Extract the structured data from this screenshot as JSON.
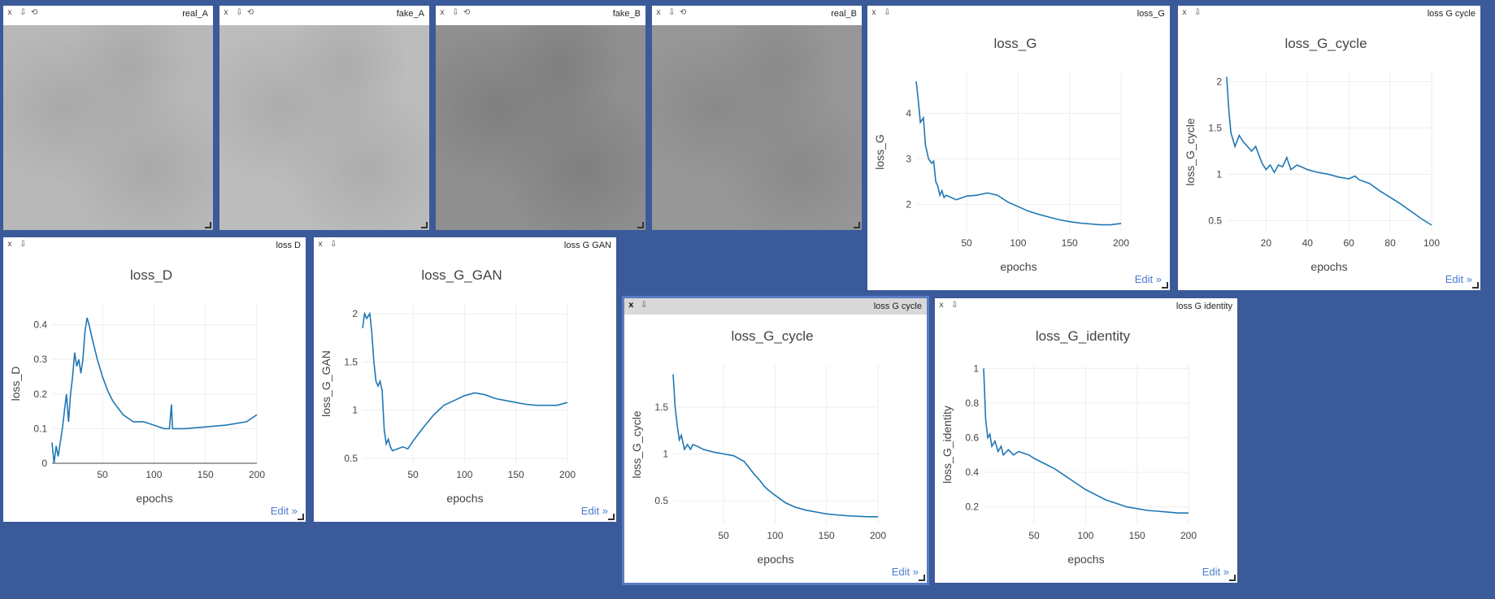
{
  "images": [
    {
      "id": "real_A",
      "title": "real_A",
      "tone": "#b8b8b8",
      "grain": "#a9a9a9"
    },
    {
      "id": "fake_A",
      "title": "fake_A",
      "tone": "#bcbcbc",
      "grain": "#acacac"
    },
    {
      "id": "fake_B",
      "title": "fake_B",
      "tone": "#8f8f8f",
      "grain": "#7f7f7f"
    },
    {
      "id": "real_B",
      "title": "real_B",
      "tone": "#979797",
      "grain": "#8a8a8a"
    }
  ],
  "plots": [
    {
      "id": "loss_G",
      "window_title": "loss_G",
      "title": "loss_G",
      "xlabel": "epochs",
      "ylabel": "loss_G",
      "edit_label": "Edit »",
      "chart_data": {
        "type": "line",
        "xlim": [
          1,
          200
        ],
        "ylim": [
          1.4,
          4.9
        ],
        "xticks": [
          50,
          100,
          150,
          200
        ],
        "yticks": [
          2,
          3,
          4
        ],
        "x": [
          1,
          3,
          5,
          8,
          10,
          13,
          16,
          18,
          20,
          22,
          24,
          26,
          28,
          30,
          35,
          40,
          50,
          60,
          70,
          80,
          90,
          100,
          110,
          120,
          130,
          140,
          150,
          160,
          170,
          180,
          190,
          200
        ],
        "y": [
          4.7,
          4.3,
          3.8,
          3.9,
          3.3,
          3.0,
          2.9,
          2.95,
          2.5,
          2.4,
          2.2,
          2.3,
          2.15,
          2.2,
          2.15,
          2.1,
          2.18,
          2.2,
          2.25,
          2.2,
          2.05,
          1.95,
          1.85,
          1.78,
          1.72,
          1.66,
          1.62,
          1.59,
          1.57,
          1.55,
          1.55,
          1.58
        ]
      }
    },
    {
      "id": "loss_G_cycle_top",
      "window_title": "loss G cycle",
      "title": "loss_G_cycle",
      "xlabel": "epochs",
      "ylabel": "loss_G_cycle",
      "edit_label": "Edit »",
      "chart_data": {
        "type": "line",
        "xlim": [
          1,
          100
        ],
        "ylim": [
          0.38,
          2.1
        ],
        "xticks": [
          20,
          40,
          60,
          80,
          100
        ],
        "yticks": [
          0.5,
          1,
          1.5,
          2
        ],
        "x": [
          1,
          2,
          3,
          5,
          7,
          9,
          11,
          13,
          15,
          18,
          20,
          22,
          24,
          26,
          28,
          30,
          32,
          35,
          38,
          40,
          45,
          50,
          55,
          60,
          63,
          65,
          70,
          75,
          80,
          85,
          90,
          95,
          100
        ],
        "y": [
          2.05,
          1.7,
          1.45,
          1.3,
          1.42,
          1.35,
          1.3,
          1.25,
          1.3,
          1.12,
          1.05,
          1.1,
          1.02,
          1.1,
          1.08,
          1.18,
          1.05,
          1.1,
          1.07,
          1.05,
          1.02,
          1.0,
          0.97,
          0.95,
          0.98,
          0.94,
          0.9,
          0.82,
          0.75,
          0.68,
          0.6,
          0.52,
          0.45
        ]
      }
    },
    {
      "id": "loss_D",
      "window_title": "loss D",
      "title": "loss_D",
      "xlabel": "epochs",
      "ylabel": "loss_D",
      "edit_label": "Edit »",
      "chart_data": {
        "type": "line",
        "xlim": [
          1,
          200
        ],
        "ylim": [
          0,
          0.46
        ],
        "xticks": [
          50,
          100,
          150,
          200
        ],
        "yticks": [
          0,
          0.1,
          0.2,
          0.3,
          0.4
        ],
        "x": [
          1,
          3,
          5,
          7,
          9,
          11,
          13,
          15,
          17,
          19,
          21,
          23,
          25,
          27,
          29,
          31,
          33,
          35,
          37,
          40,
          45,
          50,
          55,
          60,
          70,
          80,
          90,
          100,
          110,
          115,
          117,
          118,
          120,
          130,
          150,
          170,
          190,
          200
        ],
        "y": [
          0.06,
          0.0,
          0.05,
          0.02,
          0.06,
          0.1,
          0.15,
          0.2,
          0.12,
          0.2,
          0.25,
          0.32,
          0.28,
          0.3,
          0.26,
          0.3,
          0.38,
          0.42,
          0.4,
          0.36,
          0.3,
          0.25,
          0.21,
          0.18,
          0.14,
          0.12,
          0.12,
          0.11,
          0.1,
          0.1,
          0.17,
          0.1,
          0.1,
          0.1,
          0.105,
          0.11,
          0.12,
          0.14
        ]
      }
    },
    {
      "id": "loss_G_GAN",
      "window_title": "loss G GAN",
      "title": "loss_G_GAN",
      "xlabel": "epochs",
      "ylabel": "loss_G_GAN",
      "edit_label": "Edit »",
      "chart_data": {
        "type": "line",
        "xlim": [
          1,
          200
        ],
        "ylim": [
          0.45,
          2.1
        ],
        "xticks": [
          50,
          100,
          150,
          200
        ],
        "yticks": [
          0.5,
          1,
          1.5,
          2
        ],
        "x": [
          1,
          3,
          5,
          8,
          10,
          12,
          14,
          16,
          18,
          20,
          22,
          24,
          26,
          28,
          30,
          35,
          40,
          45,
          50,
          60,
          70,
          80,
          90,
          100,
          110,
          120,
          130,
          140,
          150,
          160,
          170,
          180,
          190,
          200
        ],
        "y": [
          1.85,
          2.0,
          1.95,
          2.0,
          1.8,
          1.5,
          1.3,
          1.25,
          1.3,
          1.2,
          0.8,
          0.65,
          0.7,
          0.62,
          0.58,
          0.6,
          0.62,
          0.6,
          0.68,
          0.82,
          0.95,
          1.05,
          1.1,
          1.15,
          1.18,
          1.16,
          1.12,
          1.1,
          1.08,
          1.06,
          1.05,
          1.05,
          1.05,
          1.08
        ]
      }
    },
    {
      "id": "loss_G_cycle_bottom",
      "window_title": "loss G cycle",
      "title": "loss_G_cycle",
      "xlabel": "epochs",
      "ylabel": "loss_G_cycle",
      "edit_label": "Edit »",
      "chart_data": {
        "type": "line",
        "xlim": [
          1,
          200
        ],
        "ylim": [
          0.25,
          1.95
        ],
        "xticks": [
          50,
          100,
          150,
          200
        ],
        "yticks": [
          0.5,
          1,
          1.5
        ],
        "x": [
          1,
          3,
          5,
          7,
          9,
          12,
          15,
          18,
          20,
          25,
          30,
          40,
          50,
          60,
          70,
          75,
          80,
          85,
          90,
          95,
          100,
          110,
          120,
          130,
          140,
          150,
          160,
          170,
          180,
          190,
          200
        ],
        "y": [
          1.85,
          1.5,
          1.3,
          1.15,
          1.2,
          1.05,
          1.1,
          1.05,
          1.1,
          1.08,
          1.05,
          1.02,
          1.0,
          0.98,
          0.92,
          0.85,
          0.78,
          0.72,
          0.65,
          0.6,
          0.56,
          0.48,
          0.43,
          0.4,
          0.38,
          0.36,
          0.35,
          0.34,
          0.335,
          0.33,
          0.33
        ]
      }
    },
    {
      "id": "loss_G_identity",
      "window_title": "loss G identity",
      "title": "loss_G_identity",
      "xlabel": "epochs",
      "ylabel": "loss_G_identity",
      "edit_label": "Edit »",
      "chart_data": {
        "type": "line",
        "xlim": [
          1,
          200
        ],
        "ylim": [
          0.1,
          1.02
        ],
        "xticks": [
          50,
          100,
          150,
          200
        ],
        "yticks": [
          0.2,
          0.4,
          0.6,
          0.8,
          1
        ],
        "x": [
          1,
          3,
          5,
          7,
          9,
          12,
          15,
          18,
          20,
          25,
          30,
          35,
          40,
          45,
          50,
          60,
          70,
          80,
          90,
          100,
          110,
          120,
          130,
          140,
          150,
          160,
          170,
          180,
          190,
          200
        ],
        "y": [
          1.0,
          0.7,
          0.6,
          0.62,
          0.55,
          0.58,
          0.52,
          0.55,
          0.5,
          0.53,
          0.5,
          0.52,
          0.51,
          0.5,
          0.48,
          0.45,
          0.42,
          0.38,
          0.34,
          0.3,
          0.27,
          0.24,
          0.22,
          0.2,
          0.19,
          0.18,
          0.175,
          0.17,
          0.165,
          0.165
        ]
      }
    }
  ],
  "win_controls": {
    "close": "x",
    "download": "⇩",
    "reset": "⟲"
  }
}
